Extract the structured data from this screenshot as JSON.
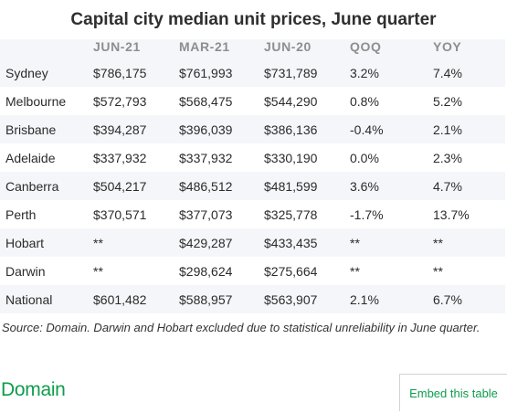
{
  "title": "Capital city median unit prices, June quarter",
  "table": {
    "headers": [
      "",
      "JUN-21",
      "MAR-21",
      "JUN-20",
      "QOQ",
      "YOY"
    ],
    "rows": [
      [
        "Sydney",
        "$786,175",
        "$761,993",
        "$731,789",
        "3.2%",
        "7.4%"
      ],
      [
        "Melbourne",
        "$572,793",
        "$568,475",
        "$544,290",
        "0.8%",
        "5.2%"
      ],
      [
        "Brisbane",
        "$394,287",
        "$396,039",
        "$386,136",
        "-0.4%",
        "2.1%"
      ],
      [
        "Adelaide",
        "$337,932",
        "$337,932",
        "$330,190",
        "0.0%",
        "2.3%"
      ],
      [
        "Canberra",
        "$504,217",
        "$486,512",
        "$481,599",
        "3.6%",
        "4.7%"
      ],
      [
        "Perth",
        "$370,571",
        "$377,073",
        "$325,778",
        "-1.7%",
        "13.7%"
      ],
      [
        "Hobart",
        "**",
        "$429,287",
        "$433,435",
        "**",
        "**"
      ],
      [
        "Darwin",
        "**",
        "$298,624",
        "$275,664",
        "**",
        "**"
      ],
      [
        "National",
        "$601,482",
        "$588,957",
        "$563,907",
        "2.1%",
        "6.7%"
      ]
    ]
  },
  "source": "Source: Domain. Darwin and Hobart excluded due to statistical unreliability in June quarter.",
  "footer": {
    "brand": "Domain",
    "embed_label": "Embed this table"
  },
  "colors": {
    "brand_green": "#0d9d4c",
    "stripe": "#f4f6f9",
    "header_text": "#8e8e8e"
  }
}
